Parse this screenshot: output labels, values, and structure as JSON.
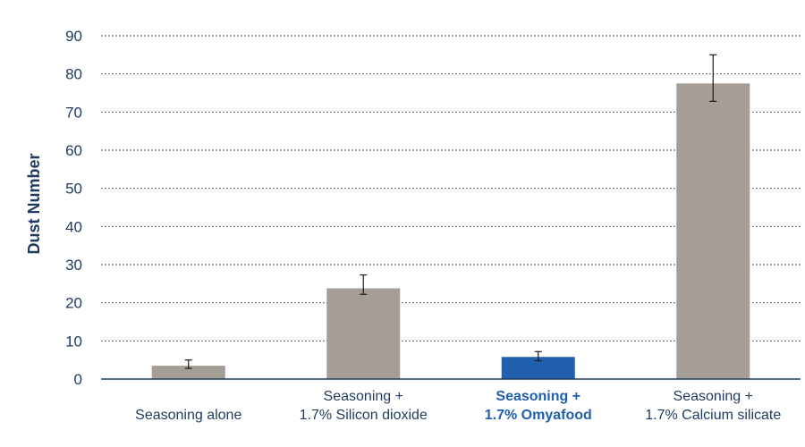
{
  "chart_data": {
    "type": "bar",
    "title": "",
    "xlabel": "",
    "ylabel": "Dust Number",
    "ylim": [
      0,
      90
    ],
    "yticks": [
      0,
      10,
      20,
      30,
      40,
      50,
      60,
      70,
      80,
      90
    ],
    "grid": true,
    "categories": [
      [
        "Seasoning alone"
      ],
      [
        "Seasoning +",
        "1.7% Silicon dioxide"
      ],
      [
        "Seasoning +",
        "1.7% Omyafood"
      ],
      [
        "Seasoning +",
        "1.7% Calcium silicate"
      ]
    ],
    "values": [
      3.5,
      23.8,
      5.8,
      77.5
    ],
    "error_low": [
      2.8,
      22.2,
      4.8,
      72.8
    ],
    "error_high": [
      5.0,
      27.3,
      7.2,
      85.0
    ],
    "bar_colors": [
      "#a59e97",
      "#a59e97",
      "#1f5fad",
      "#a59e97"
    ],
    "label_colors": [
      "#1e3a5f",
      "#1e3a5f",
      "#1f5fad",
      "#1e3a5f"
    ],
    "label_bold": [
      false,
      false,
      true,
      false
    ],
    "axis_color": "#1e3a5f",
    "grid_color": "#1e3a5f"
  }
}
